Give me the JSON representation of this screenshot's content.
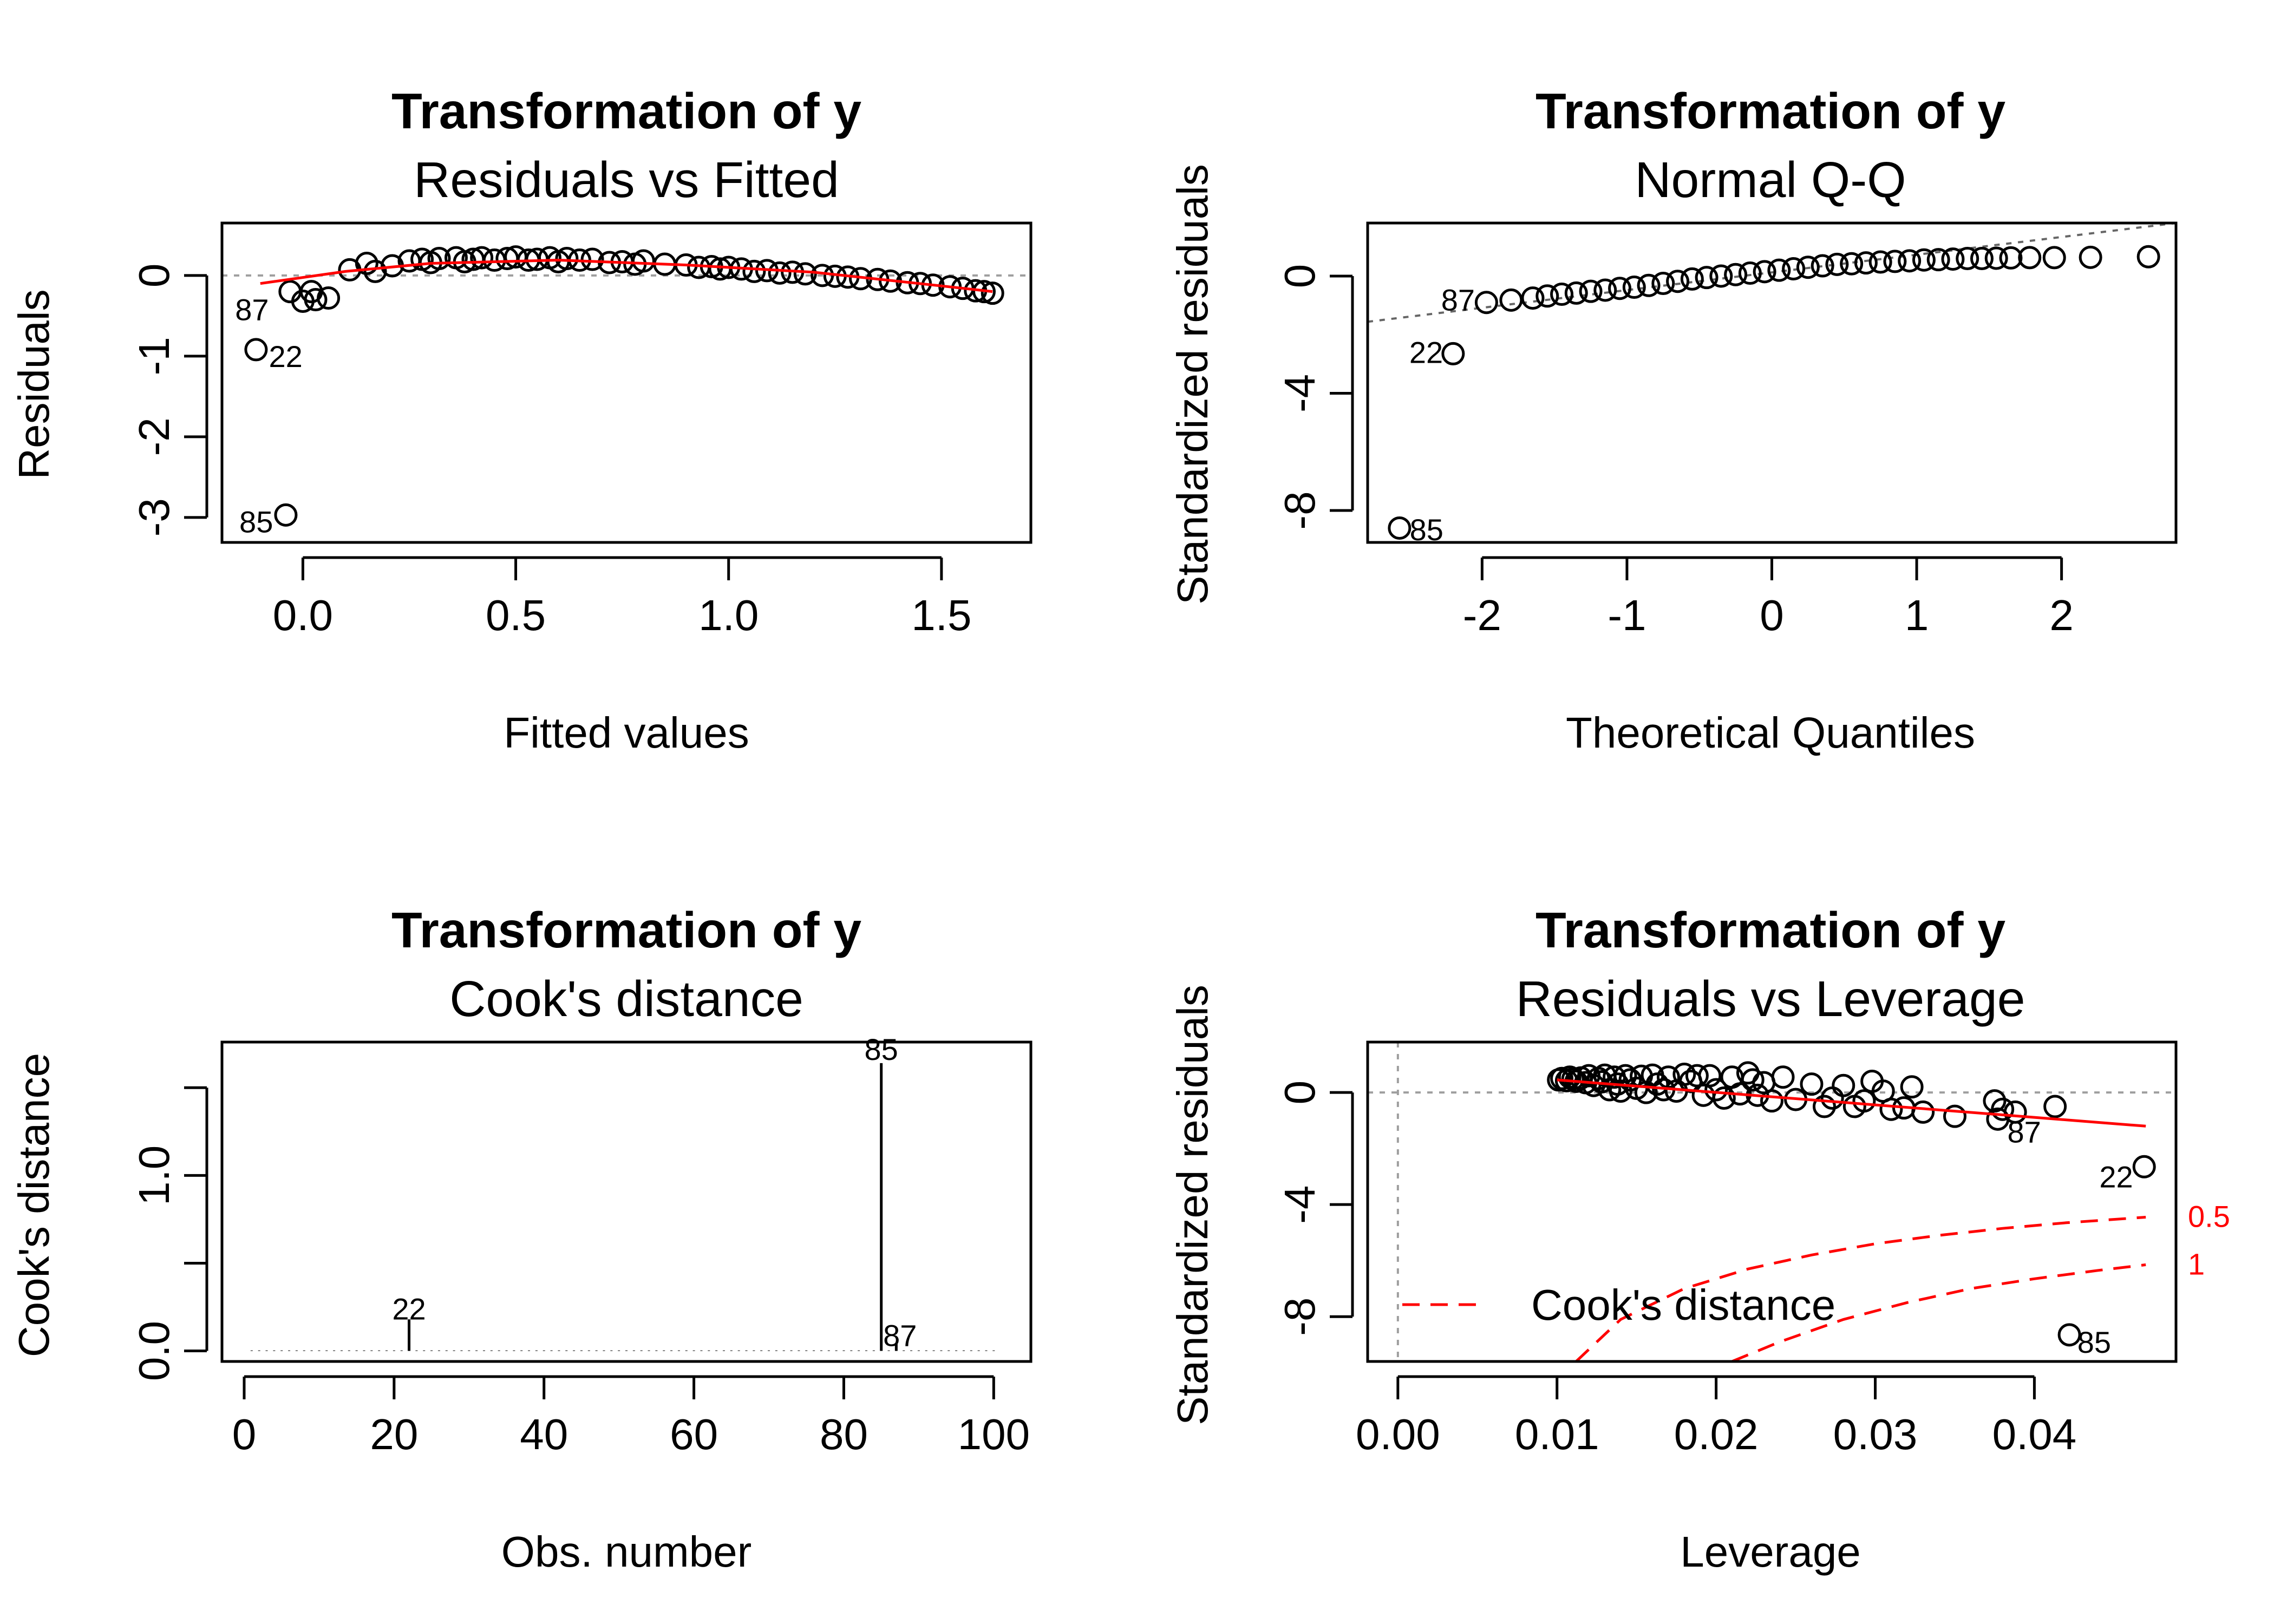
{
  "chart_data": [
    {
      "type": "scatter",
      "title": "Transformation of y",
      "subtitle": "Residuals vs Fitted",
      "xlabel": "Fitted values",
      "ylabel": "Residuals",
      "xlim": [
        -0.19,
        1.71
      ],
      "ylim": [
        -3.31,
        0.65
      ],
      "xticks": [
        0.0,
        0.5,
        1.0,
        1.5
      ],
      "xtick_labels": [
        "0.0",
        "0.5",
        "1.0",
        "1.5"
      ],
      "yticks": [
        -3,
        -2,
        -1,
        0
      ],
      "ytick_labels": [
        "-3",
        "-2",
        "-1",
        "0"
      ],
      "ref_line_y": 0,
      "smooth": {
        "color": "#ff0000",
        "x": [
          -0.1,
          0.1,
          0.3,
          0.6,
          0.9,
          1.2,
          1.5,
          1.62
        ],
        "y": [
          -0.1,
          0.05,
          0.15,
          0.19,
          0.13,
          0.04,
          -0.13,
          -0.2
        ]
      },
      "points": [
        [
          -0.04,
          -2.97
        ],
        [
          -0.11,
          -0.92
        ],
        [
          -0.03,
          -0.2
        ],
        [
          0.0,
          -0.32
        ],
        [
          0.02,
          -0.2
        ],
        [
          0.03,
          -0.3
        ],
        [
          0.06,
          -0.28
        ],
        [
          0.11,
          0.07
        ],
        [
          0.15,
          0.15
        ],
        [
          0.17,
          0.05
        ],
        [
          0.21,
          0.12
        ],
        [
          0.25,
          0.18
        ],
        [
          0.28,
          0.2
        ],
        [
          0.3,
          0.16
        ],
        [
          0.32,
          0.21
        ],
        [
          0.36,
          0.22
        ],
        [
          0.38,
          0.17
        ],
        [
          0.4,
          0.2
        ],
        [
          0.42,
          0.22
        ],
        [
          0.45,
          0.19
        ],
        [
          0.48,
          0.21
        ],
        [
          0.5,
          0.23
        ],
        [
          0.53,
          0.19
        ],
        [
          0.55,
          0.2
        ],
        [
          0.58,
          0.22
        ],
        [
          0.6,
          0.17
        ],
        [
          0.62,
          0.21
        ],
        [
          0.65,
          0.19
        ],
        [
          0.68,
          0.2
        ],
        [
          0.72,
          0.16
        ],
        [
          0.75,
          0.17
        ],
        [
          0.78,
          0.14
        ],
        [
          0.8,
          0.18
        ],
        [
          0.85,
          0.14
        ],
        [
          0.9,
          0.13
        ],
        [
          0.93,
          0.1
        ],
        [
          0.96,
          0.11
        ],
        [
          0.98,
          0.08
        ],
        [
          1.0,
          0.1
        ],
        [
          1.03,
          0.08
        ],
        [
          1.06,
          0.05
        ],
        [
          1.09,
          0.06
        ],
        [
          1.12,
          0.03
        ],
        [
          1.15,
          0.04
        ],
        [
          1.18,
          0.02
        ],
        [
          1.22,
          0.0
        ],
        [
          1.25,
          -0.01
        ],
        [
          1.28,
          -0.02
        ],
        [
          1.31,
          -0.04
        ],
        [
          1.35,
          -0.05
        ],
        [
          1.38,
          -0.07
        ],
        [
          1.42,
          -0.09
        ],
        [
          1.45,
          -0.1
        ],
        [
          1.48,
          -0.12
        ],
        [
          1.52,
          -0.14
        ],
        [
          1.55,
          -0.16
        ],
        [
          1.58,
          -0.19
        ],
        [
          1.6,
          -0.2
        ],
        [
          1.62,
          -0.22
        ]
      ],
      "labels": [
        {
          "text": "87",
          "x": -0.08,
          "y": -0.42,
          "anchor": "end"
        },
        {
          "text": "22",
          "x": -0.08,
          "y": -1.0,
          "anchor": "start"
        },
        {
          "text": "85",
          "x": -0.07,
          "y": -3.05,
          "anchor": "end"
        }
      ]
    },
    {
      "type": "scatter",
      "title": "Transformation of y",
      "subtitle": "Normal Q-Q",
      "xlabel": "Theoretical Quantiles",
      "ylabel": "Standardized residuals",
      "xlim": [
        -2.79,
        2.79
      ],
      "ylim": [
        -9.09,
        1.81
      ],
      "xticks": [
        -2,
        -1,
        0,
        1,
        2
      ],
      "xtick_labels": [
        "-2",
        "-1",
        "0",
        "1",
        "2"
      ],
      "yticks": [
        -8,
        -4,
        0
      ],
      "ytick_labels": [
        "-8",
        "-4",
        "0"
      ],
      "qq_line": {
        "color": "#666666",
        "x": [
          -2.79,
          2.79
        ],
        "y": [
          -1.56,
          1.81
        ]
      },
      "points": [
        [
          -2.57,
          -8.6
        ],
        [
          -2.2,
          -2.65
        ],
        [
          -1.97,
          -0.9
        ],
        [
          -1.8,
          -0.82
        ],
        [
          -1.65,
          -0.75
        ],
        [
          -1.55,
          -0.68
        ],
        [
          -1.45,
          -0.62
        ],
        [
          -1.35,
          -0.58
        ],
        [
          -1.25,
          -0.52
        ],
        [
          -1.15,
          -0.48
        ],
        [
          -1.05,
          -0.42
        ],
        [
          -0.95,
          -0.38
        ],
        [
          -0.85,
          -0.32
        ],
        [
          -0.75,
          -0.25
        ],
        [
          -0.65,
          -0.18
        ],
        [
          -0.55,
          -0.1
        ],
        [
          -0.45,
          -0.05
        ],
        [
          -0.35,
          0.0
        ],
        [
          -0.25,
          0.05
        ],
        [
          -0.15,
          0.1
        ],
        [
          -0.05,
          0.15
        ],
        [
          0.05,
          0.2
        ],
        [
          0.15,
          0.25
        ],
        [
          0.25,
          0.3
        ],
        [
          0.35,
          0.35
        ],
        [
          0.45,
          0.4
        ],
        [
          0.55,
          0.42
        ],
        [
          0.65,
          0.45
        ],
        [
          0.75,
          0.48
        ],
        [
          0.85,
          0.5
        ],
        [
          0.95,
          0.52
        ],
        [
          1.05,
          0.55
        ],
        [
          1.15,
          0.56
        ],
        [
          1.25,
          0.58
        ],
        [
          1.35,
          0.6
        ],
        [
          1.45,
          0.6
        ],
        [
          1.55,
          0.61
        ],
        [
          1.65,
          0.62
        ],
        [
          1.78,
          0.63
        ],
        [
          1.95,
          0.63
        ],
        [
          2.2,
          0.64
        ],
        [
          2.6,
          0.66
        ]
      ],
      "labels": [
        {
          "text": "87",
          "x": -2.05,
          "y": -0.8,
          "anchor": "end"
        },
        {
          "text": "22",
          "x": -2.27,
          "y": -2.6,
          "anchor": "end"
        },
        {
          "text": "85",
          "x": -2.5,
          "y": -8.65,
          "anchor": "start"
        }
      ]
    },
    {
      "type": "bar",
      "title": "Transformation of y",
      "subtitle": "Cook's distance",
      "xlabel": "Obs. number",
      "ylabel": "Cook's distance",
      "xlim": [
        -2.96,
        104.96
      ],
      "ylim": [
        -0.06,
        1.76
      ],
      "xticks": [
        0,
        20,
        40,
        60,
        80,
        100
      ],
      "xtick_labels": [
        "0",
        "20",
        "40",
        "60",
        "80",
        "100"
      ],
      "yticks": [
        0.0,
        0.5,
        1.0,
        1.5
      ],
      "ytick_labels": [
        "0.0",
        "",
        "1.0",
        ""
      ],
      "n": 100,
      "values": {
        "22": 0.18,
        "85": 1.64,
        "87": 0.04
      },
      "baseline": 0.003,
      "labels": [
        {
          "text": "22",
          "x": 22,
          "y": 0.24,
          "anchor": "middle"
        },
        {
          "text": "85",
          "x": 85,
          "y": 1.72,
          "anchor": "middle"
        },
        {
          "text": "87",
          "x": 87.5,
          "y": 0.09,
          "anchor": "middle"
        }
      ]
    },
    {
      "type": "scatter",
      "title": "Transformation of y",
      "subtitle": "Residuals vs Leverage",
      "xlabel": "Leverage",
      "ylabel": "Standardized residuals",
      "xlim": [
        -0.0019,
        0.0489
      ],
      "ylim": [
        -9.6,
        1.8
      ],
      "xticks": [
        0.0,
        0.01,
        0.02,
        0.03,
        0.04
      ],
      "xtick_labels": [
        "0.00",
        "0.01",
        "0.02",
        "0.03",
        "0.04"
      ],
      "yticks": [
        -8,
        -4,
        0
      ],
      "ytick_labels": [
        "-8",
        "-4",
        "0"
      ],
      "ref_line_y": 0,
      "ref_line_x": 0,
      "smooth": {
        "color": "#ff0000",
        "x": [
          0.01,
          0.047
        ],
        "y": [
          0.45,
          -1.2
        ]
      },
      "cook_contours": [
        {
          "level": "0.5",
          "label": "0.5",
          "x": [
            0.0112,
            0.014,
            0.018,
            0.022,
            0.026,
            0.03,
            0.034,
            0.038,
            0.042,
            0.047
          ],
          "y": [
            -9.6,
            -8.1,
            -7.0,
            -6.3,
            -5.8,
            -5.4,
            -5.1,
            -4.85,
            -4.65,
            -4.45
          ]
        },
        {
          "level": "1",
          "label": "1",
          "x": [
            0.021,
            0.024,
            0.028,
            0.032,
            0.036,
            0.04,
            0.044,
            0.047
          ],
          "y": [
            -9.6,
            -8.9,
            -8.1,
            -7.5,
            -7.0,
            -6.65,
            -6.35,
            -6.15
          ]
        }
      ],
      "legend": {
        "text": "Cook's distance",
        "placement": "bottom-left"
      },
      "points": [
        [
          0.0101,
          0.45
        ],
        [
          0.0103,
          0.5
        ],
        [
          0.0106,
          0.42
        ],
        [
          0.0108,
          0.55
        ],
        [
          0.011,
          0.48
        ],
        [
          0.0112,
          0.4
        ],
        [
          0.0115,
          0.52
        ],
        [
          0.0118,
          0.35
        ],
        [
          0.012,
          0.6
        ],
        [
          0.0123,
          0.25
        ],
        [
          0.0126,
          0.5
        ],
        [
          0.0128,
          0.38
        ],
        [
          0.013,
          0.62
        ],
        [
          0.0133,
          0.1
        ],
        [
          0.0136,
          0.55
        ],
        [
          0.0138,
          0.3
        ],
        [
          0.014,
          0.05
        ],
        [
          0.0143,
          0.6
        ],
        [
          0.0146,
          0.45
        ],
        [
          0.015,
          0.15
        ],
        [
          0.0153,
          0.58
        ],
        [
          0.0156,
          0.0
        ],
        [
          0.016,
          0.62
        ],
        [
          0.0163,
          0.3
        ],
        [
          0.0167,
          0.1
        ],
        [
          0.017,
          0.55
        ],
        [
          0.0175,
          0.05
        ],
        [
          0.018,
          0.65
        ],
        [
          0.0184,
          0.4
        ],
        [
          0.0188,
          0.6
        ],
        [
          0.0192,
          -0.1
        ],
        [
          0.0196,
          0.6
        ],
        [
          0.02,
          0.1
        ],
        [
          0.0205,
          -0.2
        ],
        [
          0.021,
          0.55
        ],
        [
          0.0215,
          -0.05
        ],
        [
          0.022,
          0.7
        ],
        [
          0.0223,
          0.45
        ],
        [
          0.0226,
          -0.1
        ],
        [
          0.023,
          0.35
        ],
        [
          0.0235,
          -0.3
        ],
        [
          0.0242,
          0.55
        ],
        [
          0.025,
          -0.25
        ],
        [
          0.026,
          0.3
        ],
        [
          0.0268,
          -0.5
        ],
        [
          0.0273,
          -0.2
        ],
        [
          0.028,
          0.25
        ],
        [
          0.0287,
          -0.5
        ],
        [
          0.0293,
          -0.3
        ],
        [
          0.0298,
          0.4
        ],
        [
          0.0305,
          0.05
        ],
        [
          0.031,
          -0.6
        ],
        [
          0.0318,
          -0.55
        ],
        [
          0.0323,
          0.2
        ],
        [
          0.033,
          -0.7
        ],
        [
          0.035,
          -0.85
        ],
        [
          0.0375,
          -0.3
        ],
        [
          0.0377,
          -0.95
        ],
        [
          0.038,
          -0.6
        ],
        [
          0.0388,
          -0.7
        ],
        [
          0.0413,
          -0.5
        ],
        [
          0.0469,
          -2.65
        ],
        [
          0.0422,
          -8.65
        ]
      ],
      "labels": [
        {
          "text": "87",
          "x": 0.0383,
          "y": -1.4,
          "anchor": "start"
        },
        {
          "text": "22",
          "x": 0.0462,
          "y": -3.0,
          "anchor": "end"
        },
        {
          "text": "85",
          "x": 0.0427,
          "y": -8.9,
          "anchor": "start"
        }
      ]
    }
  ]
}
